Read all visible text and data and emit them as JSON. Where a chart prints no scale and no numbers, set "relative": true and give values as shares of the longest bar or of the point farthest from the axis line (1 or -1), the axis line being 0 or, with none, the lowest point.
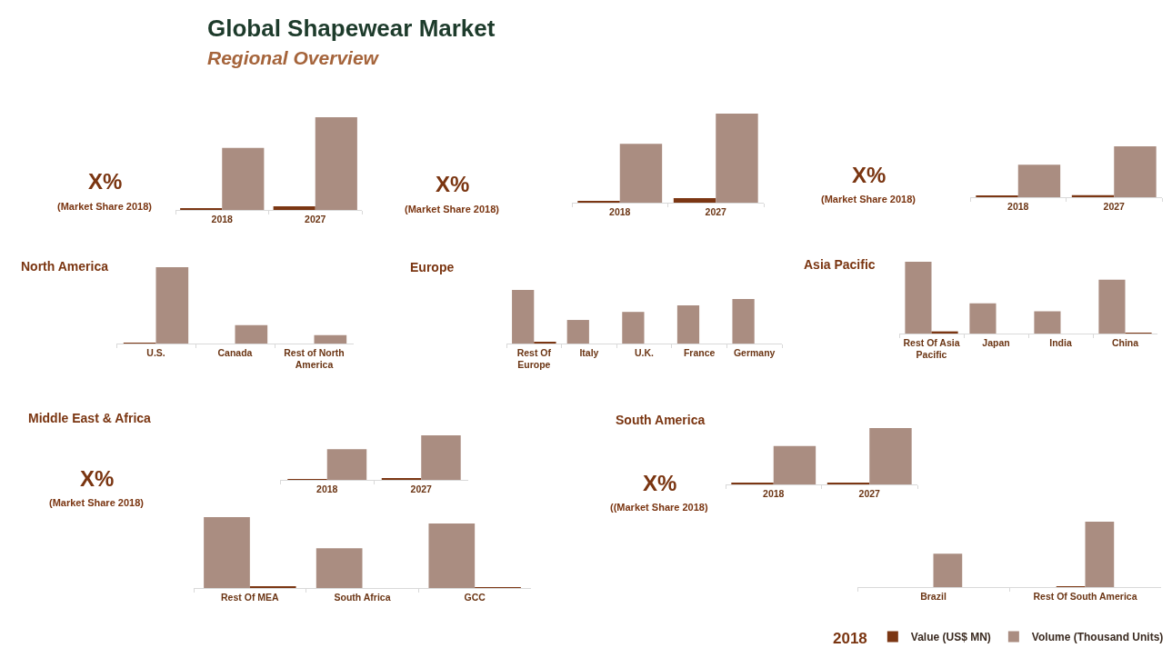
{
  "chart_data": [
    {
      "type": "other",
      "title": "Global Shapewear Market",
      "subtitle": "Regional Overview"
    },
    {
      "type": "other",
      "title": "North America",
      "annotations": [
        "X%",
        "(Market Share 2018)"
      ]
    },
    {
      "type": "bar",
      "categories": [
        "2018",
        "2027"
      ],
      "relative": true,
      "series": [
        {
          "color": "#7b3613",
          "values": [
            0.02,
            0.04
          ]
        },
        {
          "color": "#aa8d81",
          "values": [
            0.67,
            1
          ]
        }
      ]
    },
    {
      "type": "bar",
      "categories": [
        "U.S.",
        "Canada",
        "Rest of North America"
      ],
      "relative": true,
      "series": [
        {
          "color": "#7b3613",
          "values": [
            0.01,
            null,
            null
          ]
        },
        {
          "color": "#aa8d81",
          "values": [
            1,
            0.24,
            0.11
          ]
        }
      ]
    },
    {
      "type": "other",
      "title": "Europe",
      "annotations": [
        "X%",
        "(Market Share 2018)"
      ]
    },
    {
      "type": "bar",
      "categories": [
        "2018",
        "2027"
      ],
      "relative": true,
      "series": [
        {
          "color": "#7b3613",
          "values": [
            0.02,
            0.05
          ]
        },
        {
          "color": "#aa8d81",
          "values": [
            0.66,
            1
          ]
        }
      ]
    },
    {
      "type": "bar",
      "categories": [
        "Rest Of Europe",
        "Italy",
        "U.K.",
        "France",
        "Germany"
      ],
      "relative": true,
      "series": [
        {
          "color": "#aa8d81",
          "values": [
            1,
            0.44,
            0.59,
            0.71,
            0.83
          ]
        },
        {
          "color": "#7b3613",
          "values": [
            0.02,
            null,
            null,
            null,
            null
          ]
        }
      ]
    },
    {
      "type": "other",
      "title": "Asia Pacific",
      "annotations": [
        "X%",
        "(Market Share 2018)"
      ]
    },
    {
      "type": "bar",
      "categories": [
        "2018",
        "2027"
      ],
      "relative": true,
      "series": [
        {
          "color": "#7b3613",
          "values": [
            0.02,
            0.04
          ]
        },
        {
          "color": "#aa8d81",
          "values": [
            0.64,
            1
          ]
        }
      ]
    },
    {
      "type": "bar",
      "categories": [
        "Rest Of Asia Pacific",
        "Japan",
        "India",
        "China"
      ],
      "relative": true,
      "series": [
        {
          "color": "#aa8d81",
          "values": [
            1,
            0.42,
            0.31,
            0.75
          ]
        },
        {
          "color": "#7b3613",
          "values": [
            0.03,
            null,
            null,
            0.01
          ]
        }
      ]
    },
    {
      "type": "other",
      "title": "Middle East & Africa",
      "annotations": [
        "X%",
        "(Market Share 2018)"
      ]
    },
    {
      "type": "bar",
      "categories": [
        "2018",
        "2027"
      ],
      "relative": true,
      "series": [
        {
          "color": "#7b3613",
          "values": [
            0.02,
            0.04
          ]
        },
        {
          "color": "#aa8d81",
          "values": [
            0.69,
            1
          ]
        }
      ]
    },
    {
      "type": "bar",
      "categories": [
        "Rest Of MEA",
        "South Africa",
        "GCC"
      ],
      "relative": true,
      "series": [
        {
          "color": "#aa8d81",
          "values": [
            1,
            0.56,
            0.91
          ]
        },
        {
          "color": "#7b3613",
          "values": [
            0.02,
            null,
            0.01
          ]
        }
      ]
    },
    {
      "type": "other",
      "title": "South America",
      "annotations": [
        "X%",
        "((Market Share 2018)"
      ]
    },
    {
      "type": "bar",
      "categories": [
        "2018",
        "2027"
      ],
      "relative": true,
      "series": [
        {
          "color": "#7b3613",
          "values": [
            0.02,
            0.03
          ]
        },
        {
          "color": "#aa8d81",
          "values": [
            0.68,
            1
          ]
        }
      ]
    },
    {
      "type": "bar",
      "categories": [
        "Brazil",
        "Rest Of South America"
      ],
      "relative": true,
      "legend": "bottom right",
      "legend_title": "2018",
      "series": [
        {
          "name": "Value (US$ MN)",
          "color": "#7b3613",
          "values": [
            null,
            0.01
          ]
        },
        {
          "name": "Volume (Thousand Units)",
          "color": "#aa8d81",
          "values": [
            0.51,
            1
          ]
        }
      ]
    }
  ]
}
